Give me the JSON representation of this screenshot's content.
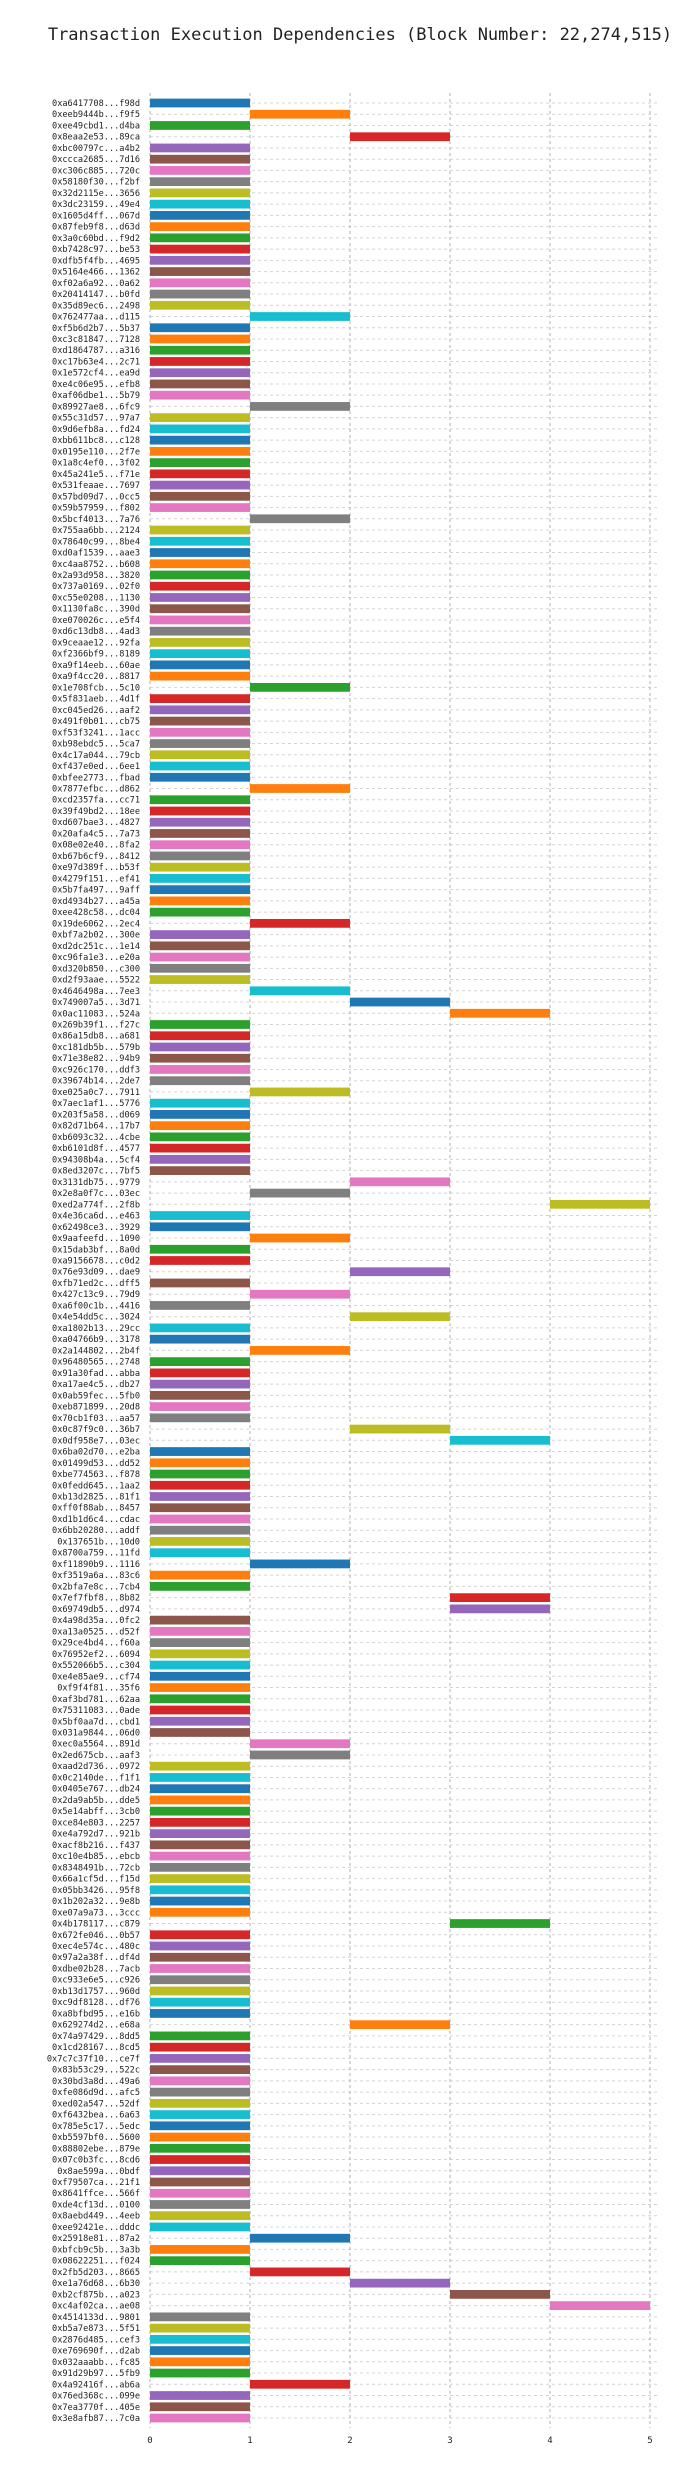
{
  "chart_data": {
    "type": "bar",
    "orientation": "horizontal-gantt",
    "title": "Transaction Execution Dependencies (Block Number: 22,274,515)",
    "xlabel": "",
    "ylabel": "",
    "xlim": [
      0,
      5
    ],
    "x_ticks": [
      "0",
      "1",
      "2",
      "3",
      "4",
      "5"
    ],
    "grid": true,
    "palette": [
      "#1f77b4",
      "#ff7f0e",
      "#2ca02c",
      "#d62728",
      "#9467bd",
      "#8c564b",
      "#e377c2",
      "#7f7f7f",
      "#bcbd22",
      "#17becf"
    ],
    "transactions": [
      [
        "0xa6417708...f98d",
        0
      ],
      [
        "0xeeb9444b...f9f5",
        1
      ],
      [
        "0xee49cbd1...d4ba",
        0
      ],
      [
        "0x8eaa2e53...89ca",
        2
      ],
      [
        "0xbc00797c...a4b2",
        0
      ],
      [
        "0xccca2685...7d16",
        0
      ],
      [
        "0xc306c885...720c",
        0
      ],
      [
        "0x58180f30...f2bf",
        0
      ],
      [
        "0x32d2115e...3656",
        0
      ],
      [
        "0x3dc23159...49e4",
        0
      ],
      [
        "0x1605d4ff...067d",
        0
      ],
      [
        "0x87feb9f8...d63d",
        0
      ],
      [
        "0x3a0c60bd...f9d2",
        0
      ],
      [
        "0xb7428c97...be53",
        0
      ],
      [
        "0xdfb5f4fb...4695",
        0
      ],
      [
        "0x5164e466...1362",
        0
      ],
      [
        "0xf02a6a92...0a62",
        0
      ],
      [
        "0x20414147...b0fd",
        0
      ],
      [
        "0x35d89ec6...2498",
        0
      ],
      [
        "0x762477aa...d115",
        1
      ],
      [
        "0xf5b6d2b7...5b37",
        0
      ],
      [
        "0xc3c81847...7128",
        0
      ],
      [
        "0xd1864787...a316",
        0
      ],
      [
        "0xc17b63e4...2c71",
        0
      ],
      [
        "0x1e572cf4...ea9d",
        0
      ],
      [
        "0xe4c06e95...efb8",
        0
      ],
      [
        "0xaf06dbe1...5b79",
        0
      ],
      [
        "0x89927ae8...6fc9",
        1
      ],
      [
        "0x55c31d57...97a7",
        0
      ],
      [
        "0x9d6efb8a...fd24",
        0
      ],
      [
        "0xbb611bc8...c128",
        0
      ],
      [
        "0x0195e110...2f7e",
        0
      ],
      [
        "0x1a8c4ef0...3f02",
        0
      ],
      [
        "0x45a241e5...f71e",
        0
      ],
      [
        "0x531feaae...7697",
        0
      ],
      [
        "0x57bd09d7...0cc5",
        0
      ],
      [
        "0x59b57959...f802",
        0
      ],
      [
        "0x5bcf4013...7a76",
        1
      ],
      [
        "0x755aa6bb...2124",
        0
      ],
      [
        "0x78640c99...8be4",
        0
      ],
      [
        "0xd0af1539...aae3",
        0
      ],
      [
        "0xc4aa8752...b608",
        0
      ],
      [
        "0x2a93d958...3820",
        0
      ],
      [
        "0x737a0169...02f0",
        0
      ],
      [
        "0xc55e0208...1130",
        0
      ],
      [
        "0x1130fa8c...390d",
        0
      ],
      [
        "0xe070026c...e5f4",
        0
      ],
      [
        "0xd6c13db8...4ad3",
        0
      ],
      [
        "0x9ceaae12...92fa",
        0
      ],
      [
        "0xf2366bf9...8189",
        0
      ],
      [
        "0xa9f14eeb...60ae",
        0
      ],
      [
        "0xa9f4cc20...8817",
        0
      ],
      [
        "0x1e708fcb...5c10",
        1
      ],
      [
        "0x5f831aeb...4d1f",
        0
      ],
      [
        "0xc045ed26...aaf2",
        0
      ],
      [
        "0x491f0b01...cb75",
        0
      ],
      [
        "0xf53f3241...1acc",
        0
      ],
      [
        "0xb98ebdc5...5ca7",
        0
      ],
      [
        "0x4c17a044...79cb",
        0
      ],
      [
        "0xf437e0ed...6ee1",
        0
      ],
      [
        "0xbfee2773...fbad",
        0
      ],
      [
        "0x7877efbc...d862",
        1
      ],
      [
        "0xcd2357fa...cc71",
        0
      ],
      [
        "0x39f49bd2...18ee",
        0
      ],
      [
        "0xd607bae3...4827",
        0
      ],
      [
        "0x20afa4c5...7a73",
        0
      ],
      [
        "0x08e02e40...8fa2",
        0
      ],
      [
        "0xb67b6cf9...8412",
        0
      ],
      [
        "0xe97d389f...b53f",
        0
      ],
      [
        "0x4279f151...ef41",
        0
      ],
      [
        "0x5b7fa497...9aff",
        0
      ],
      [
        "0xd4934b27...a45a",
        0
      ],
      [
        "0xee428c58...dc04",
        0
      ],
      [
        "0x19de6062...2ec4",
        1
      ],
      [
        "0xbf7a2b02...300e",
        0
      ],
      [
        "0xd2dc251c...1e14",
        0
      ],
      [
        "0xc96fa1e3...e20a",
        0
      ],
      [
        "0xd320b850...c300",
        0
      ],
      [
        "0xd2f93aae...5522",
        0
      ],
      [
        "0x4646498a...7ee3",
        1
      ],
      [
        "0x749007a5...3d71",
        2
      ],
      [
        "0x0ac11083...524a",
        3
      ],
      [
        "0x269b39f1...f27c",
        0
      ],
      [
        "0x86a15db8...a681",
        0
      ],
      [
        "0xc181db5b...579b",
        0
      ],
      [
        "0x71e38e82...94b9",
        0
      ],
      [
        "0xc926c170...ddf3",
        0
      ],
      [
        "0x39674b14...2de7",
        0
      ],
      [
        "0xe025a0c7...7911",
        1
      ],
      [
        "0x7aec1af1...5776",
        0
      ],
      [
        "0x203f5a58...d069",
        0
      ],
      [
        "0x82d71b64...17b7",
        0
      ],
      [
        "0xb6093c32...4cbe",
        0
      ],
      [
        "0xb6101d8f...4577",
        0
      ],
      [
        "0x94308b4a...5cf4",
        0
      ],
      [
        "0x8ed3207c...7bf5",
        0
      ],
      [
        "0x3131db75...9779",
        2
      ],
      [
        "0x2e8a0f7c...03ec",
        1
      ],
      [
        "0xed2a774f...2f8b",
        4
      ],
      [
        "0x4e36ca6d...e463",
        0
      ],
      [
        "0x62498ce3...3929",
        0
      ],
      [
        "0x9aafeefd...1090",
        1
      ],
      [
        "0x15dab3bf...8a0d",
        0
      ],
      [
        "0xa9156678...c0d2",
        0
      ],
      [
        "0x76e93d09...dae9",
        2
      ],
      [
        "0xfb71ed2c...dff5",
        0
      ],
      [
        "0x427c13c9...79d9",
        1
      ],
      [
        "0xa6f00c1b...4416",
        0
      ],
      [
        "0x4e54dd5c...3024",
        2
      ],
      [
        "0xa1802b13...29cc",
        0
      ],
      [
        "0xa04766b9...3178",
        0
      ],
      [
        "0x2a144802...2b4f",
        1
      ],
      [
        "0x96480565...2748",
        0
      ],
      [
        "0x91a30fad...abba",
        0
      ],
      [
        "0xa17ae4c5...db27",
        0
      ],
      [
        "0x0ab59fec...5fb0",
        0
      ],
      [
        "0xeb871899...20d8",
        0
      ],
      [
        "0x70cb1f03...aa57",
        0
      ],
      [
        "0x0c87f9c0...36b7",
        2
      ],
      [
        "0x0df958e7...03ec",
        3
      ],
      [
        "0x6ba02d70...e2ba",
        0
      ],
      [
        "0x01499d53...dd52",
        0
      ],
      [
        "0xbe774563...f878",
        0
      ],
      [
        "0x0fedd645...1aa2",
        0
      ],
      [
        "0xb13d2825...81f1",
        0
      ],
      [
        "0xff0f88ab...8457",
        0
      ],
      [
        "0xd1b1d6c4...cdac",
        0
      ],
      [
        "0x6bb20280...addf",
        0
      ],
      [
        "0x137651b...10d0",
        0
      ],
      [
        "0x8700a759...11fd",
        0
      ],
      [
        "0xf11890b9...1116",
        1
      ],
      [
        "0xf3519a6a...83c6",
        0
      ],
      [
        "0x2bfa7e8c...7cb4",
        0
      ],
      [
        "0x7ef7fbf8...8b82",
        3
      ],
      [
        "0x69749db5...d974",
        3
      ],
      [
        "0x4a98d35a...0fc2",
        0
      ],
      [
        "0xa13a0525...d52f",
        0
      ],
      [
        "0x29ce4bd4...f60a",
        0
      ],
      [
        "0x76952ef2...6094",
        0
      ],
      [
        "0x552066b5...c304",
        0
      ],
      [
        "0xe4e85ae9...cf74",
        0
      ],
      [
        "0xf9f4f81...35f6",
        0
      ],
      [
        "0xaf3bd781...62aa",
        0
      ],
      [
        "0x75311083...0ade",
        0
      ],
      [
        "0x5bf0aa7d...cbd1",
        0
      ],
      [
        "0x031a9844...06d0",
        0
      ],
      [
        "0xec0a5564...891d",
        1
      ],
      [
        "0x2ed675cb...aaf3",
        1
      ],
      [
        "0xaad2d736...0972",
        0
      ],
      [
        "0x0c2140de...f1f1",
        0
      ],
      [
        "0x0405e767...db24",
        0
      ],
      [
        "0x2da9ab5b...dde5",
        0
      ],
      [
        "0x5e14abff...3cb0",
        0
      ],
      [
        "0xce84e803...2257",
        0
      ],
      [
        "0xe4a792d7...921b",
        0
      ],
      [
        "0xacf8b216...f437",
        0
      ],
      [
        "0xc10e4b85...ebcb",
        0
      ],
      [
        "0x8348491b...72cb",
        0
      ],
      [
        "0x66a1cf5d...f15d",
        0
      ],
      [
        "0x05bb3426...95f8",
        0
      ],
      [
        "0x1b202a32...9e8b",
        0
      ],
      [
        "0xe07a9a73...3ccc",
        0
      ],
      [
        "0x4b178117...c879",
        3
      ],
      [
        "0x672fe046...0b57",
        0
      ],
      [
        "0xec4e574c...480c",
        0
      ],
      [
        "0x97a2a38f...df4d",
        0
      ],
      [
        "0xdbe02b28...7acb",
        0
      ],
      [
        "0xc933e6e5...c926",
        0
      ],
      [
        "0xb13d1757...960d",
        0
      ],
      [
        "0xc9df8128...df76",
        0
      ],
      [
        "0xa8bfbd95...e16b",
        0
      ],
      [
        "0x629274d2...e68a",
        2
      ],
      [
        "0x74a97429...8dd5",
        0
      ],
      [
        "0x1cd28167...8cd5",
        0
      ],
      [
        "0x7c7c37f10...ce7f",
        0
      ],
      [
        "0x83b53c29...522c",
        0
      ],
      [
        "0x30bd3a8d...49a6",
        0
      ],
      [
        "0xfe086d9d...afc5",
        0
      ],
      [
        "0xed02a547...52df",
        0
      ],
      [
        "0xf6432bea...6a63",
        0
      ],
      [
        "0x785e5c17...5edc",
        0
      ],
      [
        "0xb5597bf0...5600",
        0
      ],
      [
        "0x88802ebe...879e",
        0
      ],
      [
        "0x07c0b3fc...8cd6",
        0
      ],
      [
        "0x8ae599a...0bdf",
        0
      ],
      [
        "0xf79507ca...21f1",
        0
      ],
      [
        "0x8641ffce...566f",
        0
      ],
      [
        "0xde4cf13d...0100",
        0
      ],
      [
        "0x8aebd449...4eeb",
        0
      ],
      [
        "0xee92421e...dddc",
        0
      ],
      [
        "0x25918e81...87a2",
        1
      ],
      [
        "0xbfcb9c5b...3a3b",
        0
      ],
      [
        "0x08622251...f024",
        0
      ],
      [
        "0x2fb5d203...8665",
        1
      ],
      [
        "0xe1a76d68...6b30",
        2
      ],
      [
        "0xb2cf875b...a023",
        3
      ],
      [
        "0xc4af02ca...ae08",
        4
      ],
      [
        "0x4514133d...9801",
        0
      ],
      [
        "0xb5a7e873...5f51",
        0
      ],
      [
        "0x2876d485...cef3",
        0
      ],
      [
        "0xe769690f...d2ab",
        0
      ],
      [
        "0x032aaabb...fc85",
        0
      ],
      [
        "0x91d29b97...5fb9",
        0
      ],
      [
        "0x4a92416f...ab6a",
        1
      ],
      [
        "0x76ed368c...099e",
        0
      ],
      [
        "0x7ea3770f...405e",
        0
      ],
      [
        "0x3e8afb87...7c0a",
        0
      ]
    ]
  }
}
